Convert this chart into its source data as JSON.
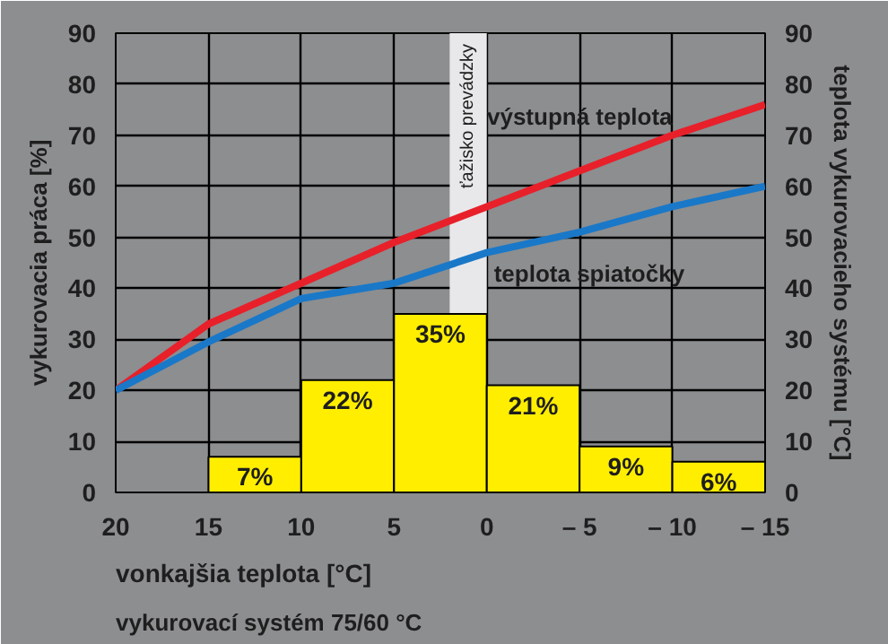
{
  "chart_data": {
    "type": "histogram",
    "xlabel": "vonkajšia teplota [°C]",
    "ylabel": "vykurovacia práca [%]",
    "y2label": "teplota vykurovacieho systému [°C]",
    "bins": [
      15,
      10,
      5,
      0,
      -5,
      -10,
      -15
    ],
    "values": [
      7,
      22,
      35,
      21,
      9,
      6
    ],
    "color": "#ffee00",
    "value_labels": [
      "7%",
      "22%",
      "35%",
      "21%",
      "9%",
      "6%"
    ],
    "series": [
      {
        "type": "line",
        "name": "výstupná teplota",
        "color": "#e8202a",
        "axis": "y2",
        "x": [
          20,
          15,
          10,
          5,
          0,
          -5,
          -10,
          -15
        ],
        "values": [
          20,
          33,
          41,
          49,
          56,
          63,
          70,
          76
        ]
      },
      {
        "type": "line",
        "name": "teplota spiatočky",
        "color": "#1a78c8",
        "axis": "y2",
        "x": [
          20,
          15,
          10,
          5,
          0,
          -5,
          -10,
          -15
        ],
        "values": [
          20,
          29.5,
          38,
          41,
          47,
          51,
          56,
          60
        ]
      }
    ],
    "bands": [
      {
        "axis": "x",
        "from": 2,
        "to": 0,
        "label": "ťažisko prevádzky",
        "color": "#e8e8ea"
      }
    ],
    "xlim": [
      20,
      -15
    ],
    "xticks": [
      20,
      15,
      10,
      5,
      0,
      {
        "value": -5,
        "label": "– 5"
      },
      {
        "value": -10,
        "label": "– 10"
      },
      {
        "value": -15,
        "label": "– 15"
      }
    ],
    "ylim": [
      0,
      90
    ],
    "yticks": [
      0,
      10,
      20,
      30,
      40,
      50,
      60,
      70,
      80,
      90
    ],
    "y2lim": [
      0,
      90
    ],
    "y2ticks": [
      0,
      10,
      20,
      30,
      40,
      50,
      60,
      70,
      80,
      90
    ],
    "grid": true,
    "legend": false,
    "annotations": [
      "vykurovací systém 75/60 °C"
    ]
  }
}
